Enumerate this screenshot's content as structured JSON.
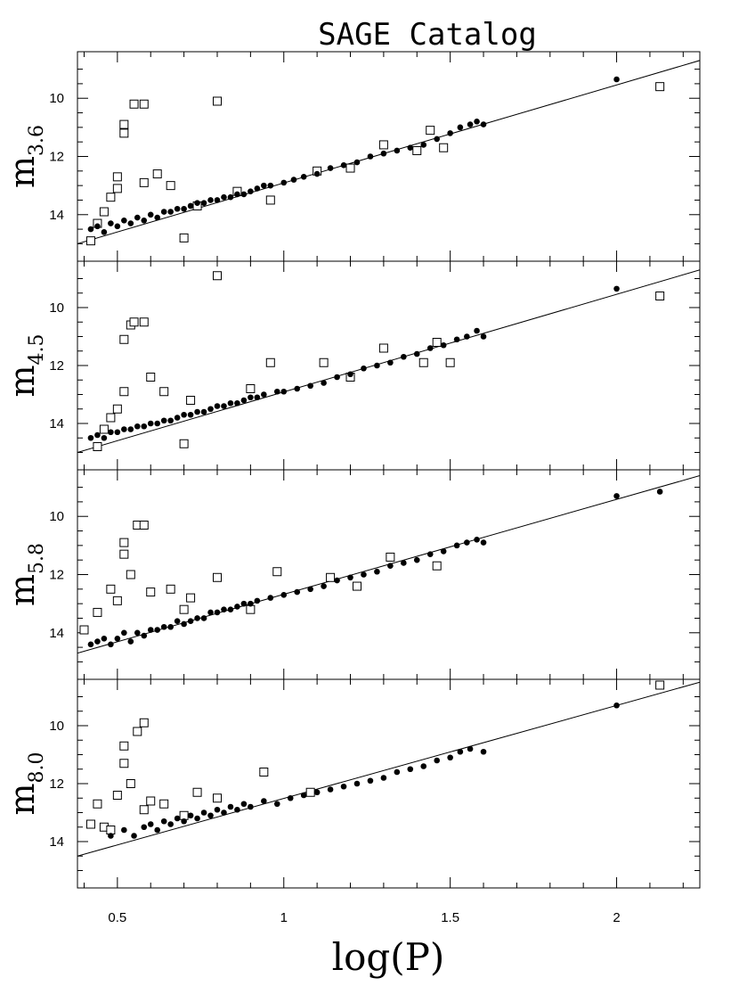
{
  "chart_data": {
    "type": "scatter",
    "title": "SAGE Catalog",
    "xlabel": "log(P)",
    "xlim": [
      0.38,
      2.25
    ],
    "ylim": [
      15.6,
      8.4
    ],
    "y_inverted": true,
    "x_ticks": [
      0.5,
      1,
      1.5,
      2
    ],
    "x_tick_labels": [
      "0.5",
      "1",
      "1.5",
      "2"
    ],
    "y_ticks": [
      10,
      12,
      14
    ],
    "y_tick_labels": [
      "10",
      "12",
      "14"
    ],
    "legend": "none",
    "grid": false,
    "series_styles": {
      "filled": "filled circles",
      "open": "open squares"
    },
    "panels": [
      {
        "ylabel_main": "m",
        "ylabel_sub": "3.6",
        "fit": {
          "x": [
            0.38,
            2.25
          ],
          "y": [
            15.0,
            8.7
          ]
        },
        "filled": [
          [
            0.42,
            14.5
          ],
          [
            0.44,
            14.4
          ],
          [
            0.46,
            14.6
          ],
          [
            0.48,
            14.3
          ],
          [
            0.5,
            14.4
          ],
          [
            0.52,
            14.2
          ],
          [
            0.54,
            14.3
          ],
          [
            0.56,
            14.1
          ],
          [
            0.58,
            14.2
          ],
          [
            0.6,
            14.0
          ],
          [
            0.62,
            14.1
          ],
          [
            0.64,
            13.9
          ],
          [
            0.66,
            13.9
          ],
          [
            0.68,
            13.8
          ],
          [
            0.7,
            13.8
          ],
          [
            0.72,
            13.7
          ],
          [
            0.74,
            13.6
          ],
          [
            0.76,
            13.6
          ],
          [
            0.78,
            13.5
          ],
          [
            0.8,
            13.5
          ],
          [
            0.82,
            13.4
          ],
          [
            0.84,
            13.4
          ],
          [
            0.86,
            13.3
          ],
          [
            0.88,
            13.3
          ],
          [
            0.9,
            13.2
          ],
          [
            0.92,
            13.1
          ],
          [
            0.94,
            13.0
          ],
          [
            0.96,
            13.0
          ],
          [
            1.0,
            12.9
          ],
          [
            1.03,
            12.8
          ],
          [
            1.06,
            12.7
          ],
          [
            1.1,
            12.6
          ],
          [
            1.14,
            12.4
          ],
          [
            1.18,
            12.3
          ],
          [
            1.22,
            12.2
          ],
          [
            1.26,
            12.0
          ],
          [
            1.3,
            11.9
          ],
          [
            1.34,
            11.8
          ],
          [
            1.38,
            11.7
          ],
          [
            1.42,
            11.6
          ],
          [
            1.46,
            11.4
          ],
          [
            1.5,
            11.2
          ],
          [
            1.53,
            11.0
          ],
          [
            1.56,
            10.9
          ],
          [
            1.58,
            10.8
          ],
          [
            1.6,
            10.9
          ],
          [
            2.0,
            9.35
          ]
        ],
        "open": [
          [
            0.42,
            14.9
          ],
          [
            0.44,
            14.3
          ],
          [
            0.46,
            13.9
          ],
          [
            0.48,
            13.4
          ],
          [
            0.5,
            13.1
          ],
          [
            0.5,
            12.7
          ],
          [
            0.52,
            11.2
          ],
          [
            0.52,
            10.9
          ],
          [
            0.55,
            10.2
          ],
          [
            0.58,
            10.2
          ],
          [
            0.58,
            12.9
          ],
          [
            0.62,
            12.6
          ],
          [
            0.66,
            13.0
          ],
          [
            0.7,
            14.8
          ],
          [
            0.74,
            13.7
          ],
          [
            0.8,
            10.1
          ],
          [
            0.86,
            13.2
          ],
          [
            0.96,
            13.5
          ],
          [
            1.1,
            12.5
          ],
          [
            1.2,
            12.4
          ],
          [
            1.3,
            11.6
          ],
          [
            1.4,
            11.8
          ],
          [
            1.44,
            11.1
          ],
          [
            1.48,
            11.7
          ],
          [
            2.13,
            9.6
          ]
        ]
      },
      {
        "ylabel_main": "m",
        "ylabel_sub": "4.5",
        "fit": {
          "x": [
            0.38,
            2.25
          ],
          "y": [
            15.0,
            8.7
          ]
        },
        "filled": [
          [
            0.42,
            14.5
          ],
          [
            0.44,
            14.4
          ],
          [
            0.46,
            14.5
          ],
          [
            0.48,
            14.3
          ],
          [
            0.5,
            14.3
          ],
          [
            0.52,
            14.2
          ],
          [
            0.54,
            14.2
          ],
          [
            0.56,
            14.1
          ],
          [
            0.58,
            14.1
          ],
          [
            0.6,
            14.0
          ],
          [
            0.62,
            14.0
          ],
          [
            0.64,
            13.9
          ],
          [
            0.66,
            13.9
          ],
          [
            0.68,
            13.8
          ],
          [
            0.7,
            13.7
          ],
          [
            0.72,
            13.7
          ],
          [
            0.74,
            13.6
          ],
          [
            0.76,
            13.6
          ],
          [
            0.78,
            13.5
          ],
          [
            0.8,
            13.4
          ],
          [
            0.82,
            13.4
          ],
          [
            0.84,
            13.3
          ],
          [
            0.86,
            13.3
          ],
          [
            0.88,
            13.2
          ],
          [
            0.9,
            13.1
          ],
          [
            0.92,
            13.1
          ],
          [
            0.94,
            13.0
          ],
          [
            0.98,
            12.9
          ],
          [
            1.0,
            12.9
          ],
          [
            1.04,
            12.8
          ],
          [
            1.08,
            12.7
          ],
          [
            1.12,
            12.6
          ],
          [
            1.16,
            12.4
          ],
          [
            1.2,
            12.3
          ],
          [
            1.24,
            12.1
          ],
          [
            1.28,
            12.0
          ],
          [
            1.32,
            11.9
          ],
          [
            1.36,
            11.7
          ],
          [
            1.4,
            11.6
          ],
          [
            1.44,
            11.4
          ],
          [
            1.48,
            11.3
          ],
          [
            1.52,
            11.1
          ],
          [
            1.55,
            11.0
          ],
          [
            1.58,
            10.8
          ],
          [
            1.6,
            11.0
          ],
          [
            2.0,
            9.35
          ]
        ],
        "open": [
          [
            0.44,
            14.8
          ],
          [
            0.46,
            14.2
          ],
          [
            0.48,
            13.8
          ],
          [
            0.5,
            13.5
          ],
          [
            0.52,
            12.9
          ],
          [
            0.52,
            11.1
          ],
          [
            0.54,
            10.6
          ],
          [
            0.55,
            10.5
          ],
          [
            0.58,
            10.5
          ],
          [
            0.6,
            12.4
          ],
          [
            0.64,
            12.9
          ],
          [
            0.7,
            14.7
          ],
          [
            0.72,
            13.2
          ],
          [
            0.8,
            8.9
          ],
          [
            0.9,
            12.8
          ],
          [
            0.96,
            11.9
          ],
          [
            1.12,
            11.9
          ],
          [
            1.2,
            12.4
          ],
          [
            1.3,
            11.4
          ],
          [
            1.42,
            11.9
          ],
          [
            1.46,
            11.2
          ],
          [
            1.5,
            11.9
          ],
          [
            2.13,
            9.6
          ]
        ]
      },
      {
        "ylabel_main": "m",
        "ylabel_sub": "5.8",
        "fit": {
          "x": [
            0.38,
            2.25
          ],
          "y": [
            14.7,
            8.6
          ]
        },
        "filled": [
          [
            0.42,
            14.4
          ],
          [
            0.44,
            14.3
          ],
          [
            0.46,
            14.2
          ],
          [
            0.48,
            14.4
          ],
          [
            0.5,
            14.2
          ],
          [
            0.52,
            14.0
          ],
          [
            0.54,
            14.3
          ],
          [
            0.56,
            14.0
          ],
          [
            0.58,
            14.1
          ],
          [
            0.6,
            13.9
          ],
          [
            0.62,
            13.9
          ],
          [
            0.64,
            13.8
          ],
          [
            0.66,
            13.8
          ],
          [
            0.68,
            13.6
          ],
          [
            0.7,
            13.7
          ],
          [
            0.72,
            13.6
          ],
          [
            0.74,
            13.5
          ],
          [
            0.76,
            13.5
          ],
          [
            0.78,
            13.3
          ],
          [
            0.8,
            13.3
          ],
          [
            0.82,
            13.2
          ],
          [
            0.84,
            13.2
          ],
          [
            0.86,
            13.1
          ],
          [
            0.88,
            13.0
          ],
          [
            0.9,
            13.0
          ],
          [
            0.92,
            12.9
          ],
          [
            0.96,
            12.8
          ],
          [
            1.0,
            12.7
          ],
          [
            1.04,
            12.6
          ],
          [
            1.08,
            12.5
          ],
          [
            1.12,
            12.4
          ],
          [
            1.16,
            12.2
          ],
          [
            1.2,
            12.1
          ],
          [
            1.24,
            12.0
          ],
          [
            1.28,
            11.9
          ],
          [
            1.32,
            11.7
          ],
          [
            1.36,
            11.6
          ],
          [
            1.4,
            11.5
          ],
          [
            1.44,
            11.3
          ],
          [
            1.48,
            11.2
          ],
          [
            1.52,
            11.0
          ],
          [
            1.55,
            10.9
          ],
          [
            1.58,
            10.8
          ],
          [
            1.6,
            10.9
          ],
          [
            2.0,
            9.3
          ],
          [
            2.13,
            9.15
          ]
        ],
        "open": [
          [
            0.4,
            13.9
          ],
          [
            0.44,
            13.3
          ],
          [
            0.48,
            12.5
          ],
          [
            0.5,
            12.9
          ],
          [
            0.52,
            11.3
          ],
          [
            0.52,
            10.9
          ],
          [
            0.54,
            12.0
          ],
          [
            0.56,
            10.3
          ],
          [
            0.58,
            10.3
          ],
          [
            0.6,
            12.6
          ],
          [
            0.66,
            12.5
          ],
          [
            0.7,
            13.2
          ],
          [
            0.72,
            12.8
          ],
          [
            0.8,
            12.1
          ],
          [
            0.9,
            13.2
          ],
          [
            0.98,
            11.9
          ],
          [
            1.14,
            12.1
          ],
          [
            1.22,
            12.4
          ],
          [
            1.32,
            11.4
          ],
          [
            1.46,
            11.7
          ]
        ]
      },
      {
        "ylabel_main": "m",
        "ylabel_sub": "8.0",
        "fit": {
          "x": [
            0.38,
            2.25
          ],
          "y": [
            14.5,
            8.5
          ]
        },
        "filled": [
          [
            0.48,
            13.8
          ],
          [
            0.52,
            13.6
          ],
          [
            0.55,
            13.8
          ],
          [
            0.58,
            13.5
          ],
          [
            0.6,
            13.4
          ],
          [
            0.62,
            13.6
          ],
          [
            0.64,
            13.3
          ],
          [
            0.66,
            13.4
          ],
          [
            0.68,
            13.2
          ],
          [
            0.7,
            13.3
          ],
          [
            0.72,
            13.1
          ],
          [
            0.74,
            13.2
          ],
          [
            0.76,
            13.0
          ],
          [
            0.78,
            13.1
          ],
          [
            0.8,
            12.9
          ],
          [
            0.82,
            13.0
          ],
          [
            0.84,
            12.8
          ],
          [
            0.86,
            12.9
          ],
          [
            0.88,
            12.7
          ],
          [
            0.9,
            12.8
          ],
          [
            0.94,
            12.6
          ],
          [
            0.98,
            12.7
          ],
          [
            1.02,
            12.5
          ],
          [
            1.06,
            12.4
          ],
          [
            1.1,
            12.3
          ],
          [
            1.14,
            12.2
          ],
          [
            1.18,
            12.1
          ],
          [
            1.22,
            12.0
          ],
          [
            1.26,
            11.9
          ],
          [
            1.3,
            11.8
          ],
          [
            1.34,
            11.6
          ],
          [
            1.38,
            11.5
          ],
          [
            1.42,
            11.4
          ],
          [
            1.46,
            11.2
          ],
          [
            1.5,
            11.1
          ],
          [
            1.53,
            10.9
          ],
          [
            1.56,
            10.8
          ],
          [
            1.6,
            10.9
          ],
          [
            2.0,
            9.3
          ]
        ],
        "open": [
          [
            0.42,
            13.4
          ],
          [
            0.44,
            12.7
          ],
          [
            0.46,
            13.5
          ],
          [
            0.48,
            13.6
          ],
          [
            0.5,
            12.4
          ],
          [
            0.52,
            11.3
          ],
          [
            0.52,
            10.7
          ],
          [
            0.54,
            12.0
          ],
          [
            0.56,
            10.2
          ],
          [
            0.58,
            9.9
          ],
          [
            0.58,
            12.9
          ],
          [
            0.6,
            12.6
          ],
          [
            0.64,
            12.7
          ],
          [
            0.7,
            13.1
          ],
          [
            0.74,
            12.3
          ],
          [
            0.8,
            12.5
          ],
          [
            0.94,
            11.6
          ],
          [
            1.08,
            12.3
          ],
          [
            2.13,
            8.6
          ]
        ]
      }
    ]
  }
}
